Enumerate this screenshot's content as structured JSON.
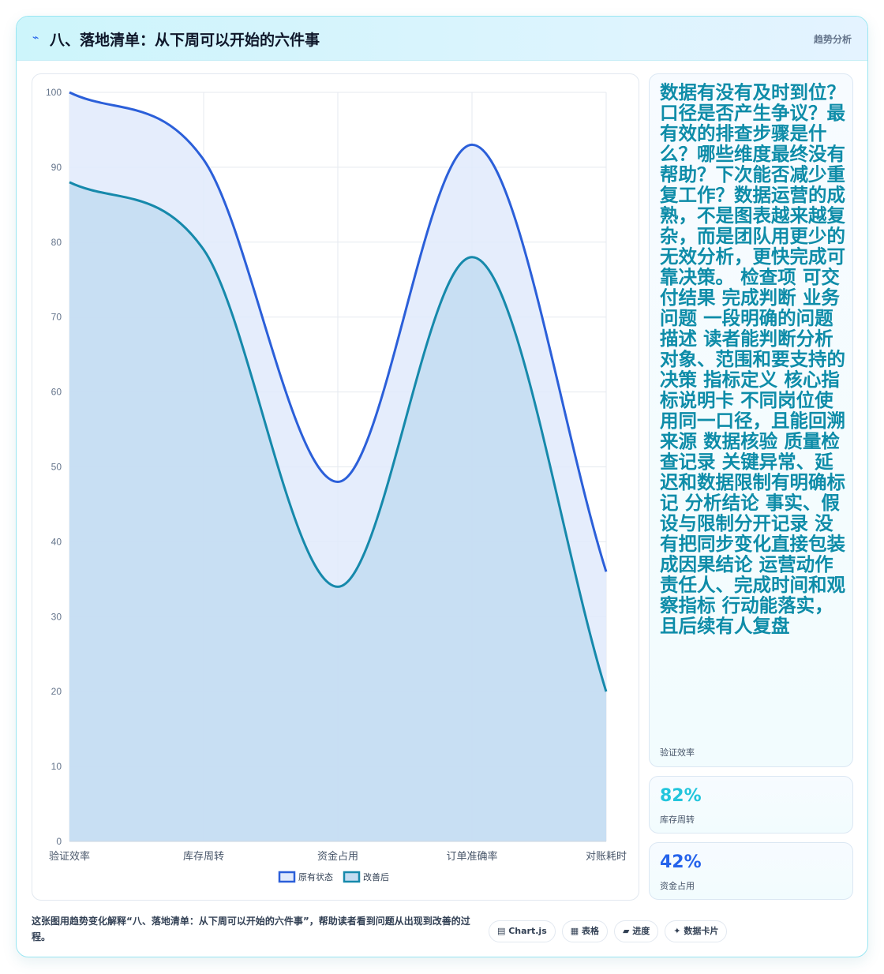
{
  "header": {
    "icon": "lightning-icon",
    "title": "八、落地清单：从下周可以开始的六件事",
    "tag": "趋势分析"
  },
  "chart_data": {
    "type": "area",
    "categories": [
      "验证效率",
      "库存周转",
      "资金占用",
      "订单准确率",
      "对账耗时"
    ],
    "series": [
      {
        "name": "原有状态",
        "values": [
          100,
          91,
          48,
          93,
          36
        ],
        "color": "#2b5fd9",
        "fill": "#e1eafc"
      },
      {
        "name": "改善后",
        "values": [
          88,
          79,
          34,
          78,
          20
        ],
        "color": "#1689ab",
        "fill": "#c3dcf1"
      }
    ],
    "ylim": [
      0,
      100
    ],
    "yticks": [
      0,
      10,
      20,
      30,
      40,
      50,
      60,
      70,
      80,
      90,
      100
    ],
    "grid": true,
    "legend": "bottom"
  },
  "metrics": [
    {
      "value": "数据有没有及时到位？口径是否产生争议？最有效的排查步骤是什么？哪些维度最终没有帮助？下次能否减少重复工作？数据运营的成熟，不是图表越来越复杂，而是团队用更少的无效分析，更快完成可靠决策。 检查项 可交付结果 完成判断 业务问题 一段明确的问题描述 读者能判断分析对象、范围和要支持的决策 指标定义 核心指标说明卡 不同岗位使用同一口径，且能回溯来源 数据核验 质量检查记录 关键异常、延迟和数据限制有明确标记 分析结论 事实、假设与限制分开记录 没有把同步变化直接包装成因果结论 运营动作 责任人、完成时间和观察指标 行动能落实，且后续有人复盘",
      "label": "验证效率"
    },
    {
      "value": "82%",
      "label": "库存周转"
    },
    {
      "value": "42%",
      "label": "资金占用"
    }
  ],
  "caption": "这张图用趋势变化解释“八、落地清单：从下周可以开始的六件事”，帮助读者看到问题从出现到改善的过程。",
  "chips": [
    {
      "icon": "chart-icon",
      "label": "Chart.js"
    },
    {
      "icon": "table-icon",
      "label": "表格"
    },
    {
      "icon": "progress-icon",
      "label": "进度"
    },
    {
      "icon": "sparkle-icon",
      "label": "数据卡片"
    }
  ]
}
